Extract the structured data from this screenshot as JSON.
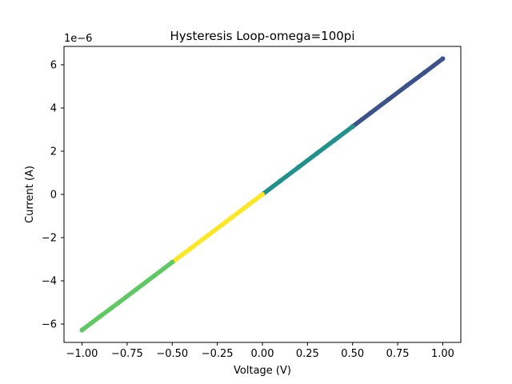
{
  "chart_data": {
    "type": "scatter",
    "title": "Hysteresis Loop-omega=100pi",
    "xlabel": "Voltage (V)",
    "ylabel": "Current (A)",
    "y_offset_label": "1e−6",
    "xlim": [
      -1.1,
      1.1
    ],
    "ylim": [
      -6.85e-06,
      6.85e-06
    ],
    "xticks": [
      -1.0,
      -0.75,
      -0.5,
      -0.25,
      0.0,
      0.25,
      0.5,
      0.75,
      1.0
    ],
    "xtick_labels": [
      "−1.00",
      "−0.75",
      "−0.50",
      "−0.25",
      "0.00",
      "0.25",
      "0.50",
      "0.75",
      "1.00"
    ],
    "yticks": [
      -6e-06,
      -4e-06,
      -2e-06,
      0,
      2e-06,
      4e-06,
      6e-06
    ],
    "ytick_labels": [
      "−6",
      "−4",
      "−2",
      "0",
      "2",
      "4",
      "6"
    ],
    "grid": false,
    "colormap": "viridis",
    "series": [
      {
        "color": "#3b528b",
        "x": [
          0.5,
          0.6,
          0.7,
          0.8,
          0.9,
          1.0
        ],
        "y": [
          3.14e-06,
          3.77e-06,
          4.4e-06,
          5.03e-06,
          5.65e-06,
          6.28e-06
        ]
      },
      {
        "color": "#21918c",
        "x": [
          0.0,
          0.1,
          0.2,
          0.3,
          0.4,
          0.5
        ],
        "y": [
          0.0,
          6.28e-07,
          1.257e-06,
          1.885e-06,
          2.513e-06,
          3.14e-06
        ]
      },
      {
        "color": "#fde725",
        "x": [
          0.0,
          -0.1,
          -0.2,
          -0.3,
          -0.4,
          -0.5
        ],
        "y": [
          0.0,
          -6.28e-07,
          -1.257e-06,
          -1.885e-06,
          -2.513e-06,
          -3.14e-06
        ]
      },
      {
        "color": "#5ec962",
        "x": [
          -0.5,
          -0.6,
          -0.7,
          -0.8,
          -0.9,
          -1.0
        ],
        "y": [
          -3.14e-06,
          -3.77e-06,
          -4.4e-06,
          -5.03e-06,
          -5.65e-06,
          -6.28e-06
        ]
      }
    ]
  }
}
